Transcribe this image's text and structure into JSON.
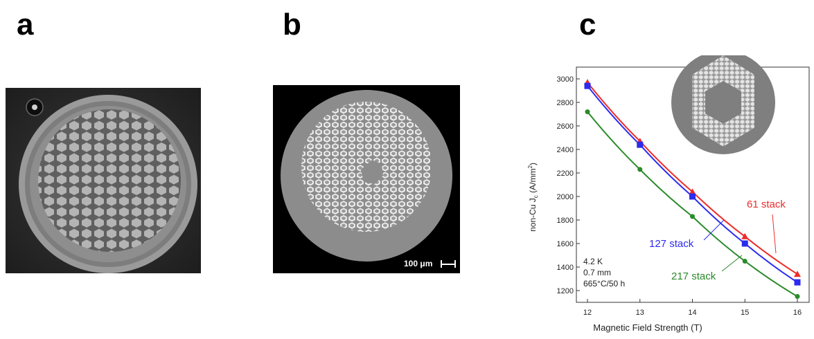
{
  "panels": {
    "a": {
      "label": "a"
    },
    "b": {
      "label": "b",
      "scale_bar": "100 μm"
    },
    "c": {
      "label": "c"
    }
  },
  "chart_data": {
    "type": "line",
    "xlabel": "Magnetic Field Strength (T)",
    "ylabel": "non-Cu J",
    "ylabel_sub": "c",
    "ylabel_unit": " (A/mm",
    "ylabel_sup": "2",
    "ylabel_close": ")",
    "x": [
      12,
      13,
      14,
      15,
      16
    ],
    "xlim": [
      12,
      16
    ],
    "ylim": [
      1200,
      3000
    ],
    "yticks": [
      1200,
      1400,
      1600,
      1800,
      2000,
      2200,
      2400,
      2600,
      2800,
      3000
    ],
    "series": [
      {
        "name": "61 stack",
        "color": "#ee2b2b",
        "marker": "triangle",
        "values": [
          2970,
          2470,
          2040,
          1660,
          1340
        ]
      },
      {
        "name": "127 stack",
        "color": "#2b2bee",
        "marker": "square",
        "values": [
          2940,
          2440,
          2000,
          1600,
          1270
        ]
      },
      {
        "name": "217 stack",
        "color": "#2a8a2a",
        "marker": "circle",
        "values": [
          2720,
          2230,
          1830,
          1450,
          1150
        ]
      }
    ],
    "annotations": [
      "4.2 K",
      "0.7 mm",
      "665°C/50 h"
    ],
    "grid": false
  },
  "colors": {
    "fig_bg": "#ffffff",
    "img_b_bg": "#000000",
    "img_b_disk": "#8c8c8c"
  }
}
